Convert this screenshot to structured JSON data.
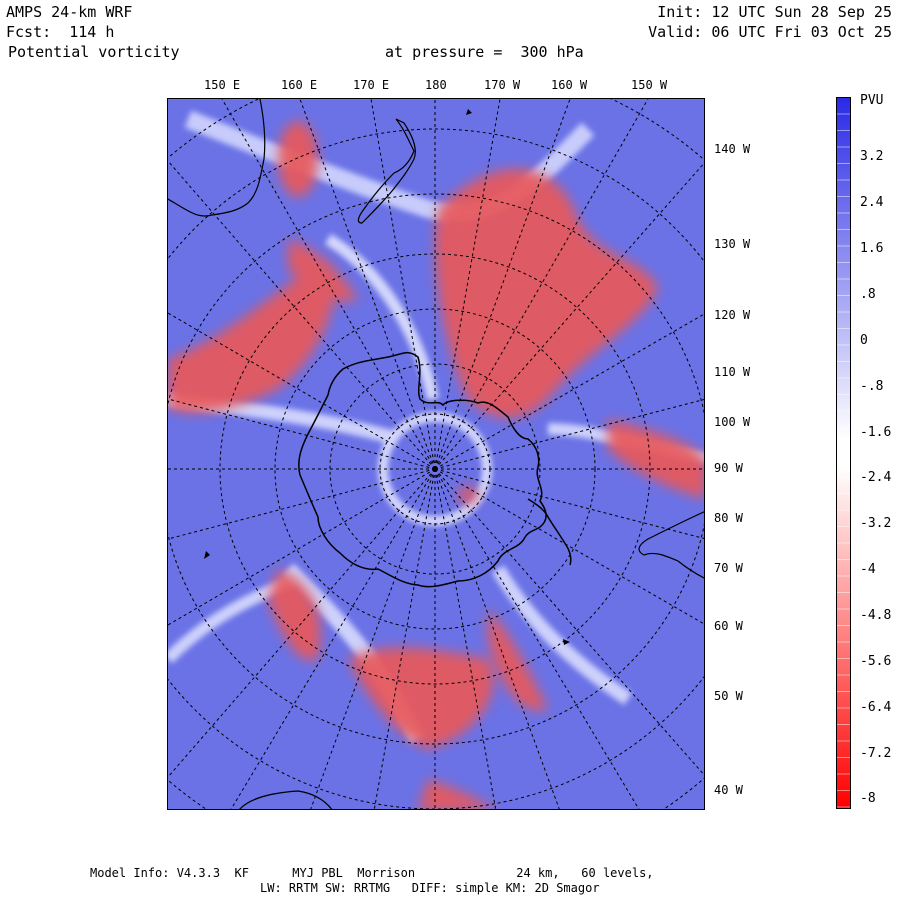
{
  "header": {
    "model": "AMPS 24-km WRF",
    "forecast": "Fcst:  114 h",
    "field": "Potential vorticity",
    "level": "at pressure =  300 hPa",
    "init": "Init: 12 UTC Sun 28 Sep 25",
    "valid": "Valid: 06 UTC Fri 03 Oct 25"
  },
  "map": {
    "projection": "polar stereographic, south pole",
    "top_lon_labels": [
      "150 E",
      "160 E",
      "170 E",
      "180",
      "170 W",
      "160 W",
      "150 W"
    ],
    "right_lon_labels": [
      "140 W",
      "130 W",
      "120 W",
      "110 W",
      "100 W",
      "90 W",
      "80 W",
      "70 W",
      "60 W",
      "50 W",
      "40 W"
    ],
    "colors": {
      "positive": "#6a72e6",
      "negative": "#e23c3c",
      "neutral": "#f2f2ff",
      "coast": "#000000"
    }
  },
  "colorbar": {
    "units": "PVU",
    "tick_labels": [
      "3.2",
      "2.4",
      "1.6",
      ".8",
      "0",
      "-.8",
      "-1.6",
      "-2.4",
      "-3.2",
      "-4",
      "-4.8",
      "-5.6",
      "-6.4",
      "-7.2",
      "-8"
    ],
    "top_color": "#2a2ae6",
    "mid_color": "#ffffff",
    "bottom_color": "#ff0000"
  },
  "footer": {
    "line1": "Model Info: V4.3.3  KF      MYJ PBL  Morrison              24 km,   60 levels,",
    "line2": "LW: RRTM SW: RRTMG   DIFF: simple KM: 2D Smagor"
  }
}
